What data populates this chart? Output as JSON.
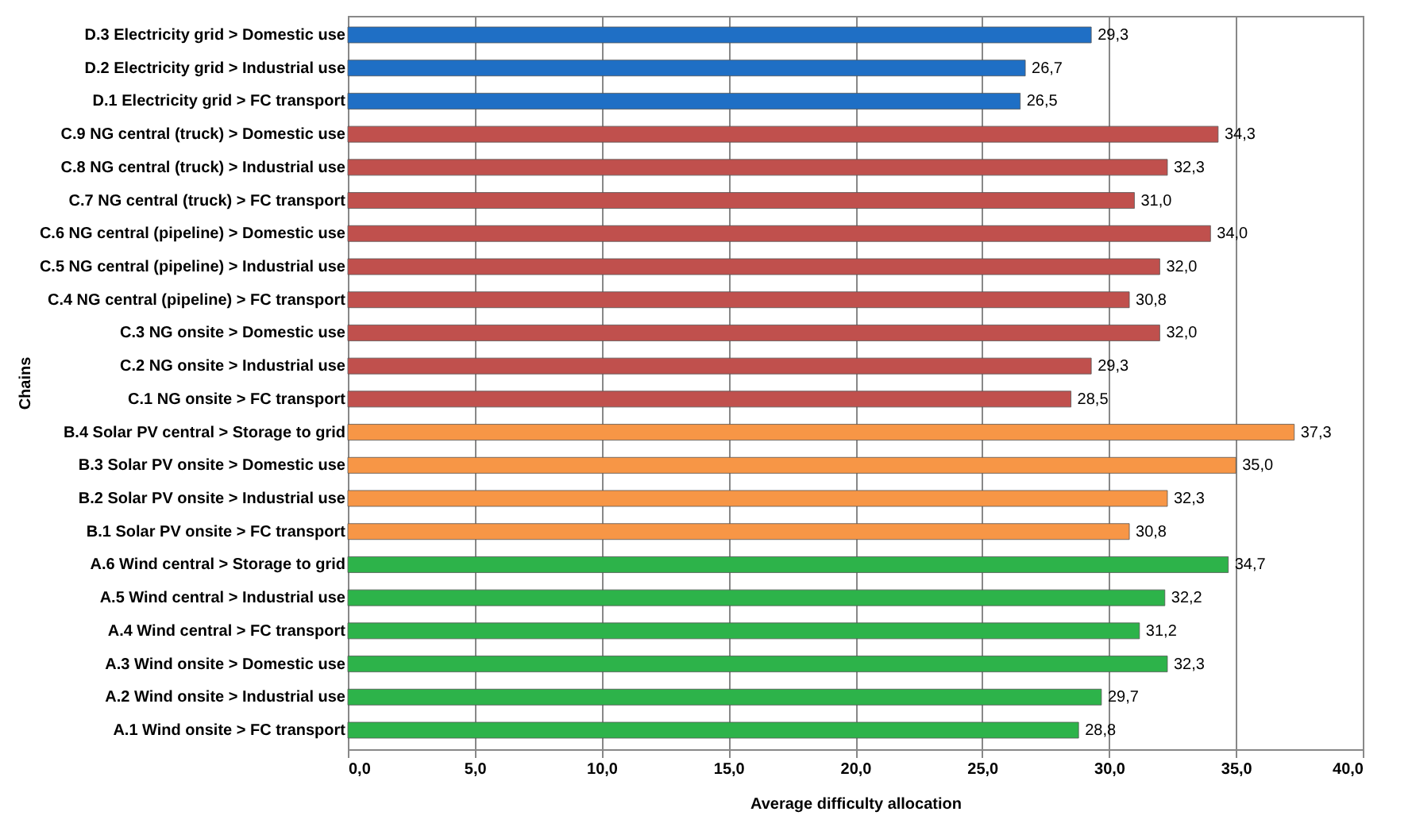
{
  "chart_data": {
    "type": "bar",
    "orientation": "horizontal",
    "xlabel": "Average difficulty allocation",
    "ylabel": "Chains",
    "categories": [
      "D.3 Electricity grid > Domestic use",
      "D.2 Electricity grid > Industrial use",
      "D.1 Electricity grid > FC transport",
      "C.9 NG central (truck) > Domestic use",
      "C.8 NG central (truck) > Industrial use",
      "C.7 NG central (truck) > FC transport",
      "C.6 NG central (pipeline) > Domestic use",
      "C.5 NG central (pipeline) > Industrial use",
      "C.4 NG central (pipeline) > FC transport",
      "C.3 NG onsite > Domestic use",
      "C.2 NG onsite > Industrial use",
      "C.1 NG onsite > FC transport",
      "B.4 Solar PV central > Storage to grid",
      "B.3 Solar PV onsite > Domestic use",
      "B.2 Solar PV onsite > Industrial use",
      "B.1 Solar PV onsite > FC transport",
      "A.6 Wind central > Storage to grid",
      "A.5 Wind central > Industrial use",
      "A.4 Wind central > FC transport",
      "A.3 Wind onsite > Domestic use",
      "A.2 Wind onsite > Industrial use",
      "A.1 Wind onsite > FC transport"
    ],
    "values": [
      29.3,
      26.7,
      26.5,
      34.3,
      32.3,
      31.0,
      34.0,
      32.0,
      30.8,
      32.0,
      29.3,
      28.5,
      37.3,
      35.0,
      32.3,
      30.8,
      34.7,
      32.2,
      31.2,
      32.3,
      29.7,
      28.8
    ],
    "value_labels": [
      "29,3",
      "26,7",
      "26,5",
      "34,3",
      "32,3",
      "31,0",
      "34,0",
      "32,0",
      "30,8",
      "32,0",
      "29,3",
      "28,5",
      "37,3",
      "35,0",
      "32,3",
      "30,8",
      "34,7",
      "32,2",
      "31,2",
      "32,3",
      "29,7",
      "28,8"
    ],
    "colors": [
      "#1f6fc5",
      "#1f6fc5",
      "#1f6fc5",
      "#c0504d",
      "#c0504d",
      "#c0504d",
      "#c0504d",
      "#c0504d",
      "#c0504d",
      "#c0504d",
      "#c0504d",
      "#c0504d",
      "#f79646",
      "#f79646",
      "#f79646",
      "#f79646",
      "#2db34a",
      "#2db34a",
      "#2db34a",
      "#2db34a",
      "#2db34a",
      "#2db34a"
    ],
    "xlim": [
      0,
      40
    ],
    "xticks": [
      {
        "value": 0,
        "label": "0,0"
      },
      {
        "value": 5,
        "label": "5,0"
      },
      {
        "value": 10,
        "label": "10,0"
      },
      {
        "value": 15,
        "label": "15,0"
      },
      {
        "value": 20,
        "label": "20,0"
      },
      {
        "value": 25,
        "label": "25,0"
      },
      {
        "value": 30,
        "label": "30,0"
      },
      {
        "value": 35,
        "label": "35,0"
      },
      {
        "value": 40,
        "label": "40,0"
      }
    ],
    "grid": "x"
  }
}
